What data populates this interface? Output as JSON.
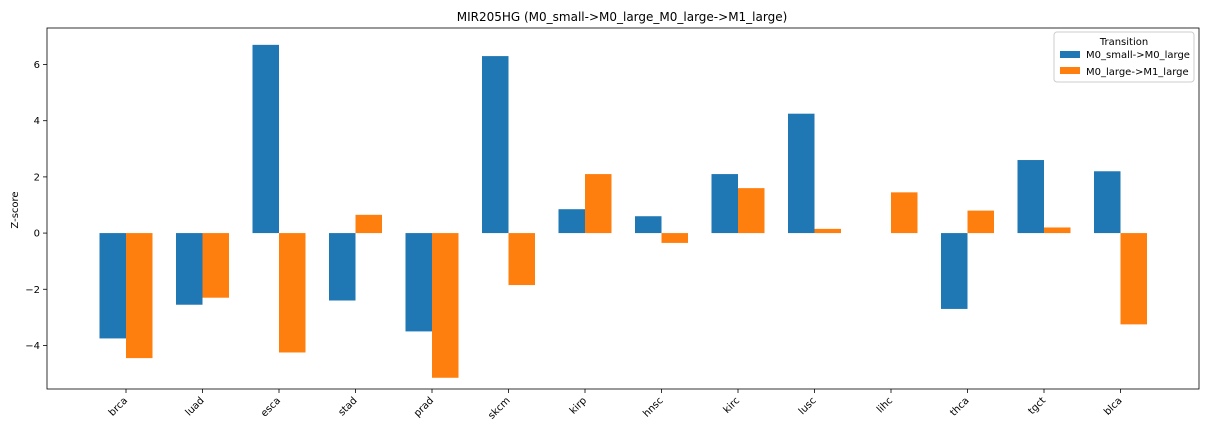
{
  "chart_data": {
    "type": "bar",
    "title": "MIR205HG (M0_small->M0_large_M0_large->M1_large)",
    "xlabel": "",
    "ylabel": "Z-score",
    "categories": [
      "brca",
      "luad",
      "esca",
      "stad",
      "prad",
      "skcm",
      "kirp",
      "hnsc",
      "kirc",
      "lusc",
      "lihc",
      "thca",
      "tgct",
      "blca"
    ],
    "series": [
      {
        "name": "M0_small->M0_large",
        "color": "#1f77b4",
        "values": [
          -3.75,
          -2.55,
          6.7,
          -2.4,
          -3.5,
          6.3,
          0.85,
          0.6,
          2.1,
          4.25,
          null,
          -2.7,
          2.6,
          2.2
        ]
      },
      {
        "name": "M0_large->M1_large",
        "color": "#ff7f0e",
        "values": [
          -4.45,
          -2.3,
          -4.25,
          0.65,
          -5.15,
          -1.85,
          2.1,
          -0.35,
          1.6,
          0.15,
          1.45,
          0.8,
          0.2,
          -3.25
        ]
      }
    ],
    "ylim": [
      -5.55,
      7.3
    ],
    "yticks": [
      -4,
      -2,
      0,
      2,
      4,
      6
    ],
    "legend": {
      "title": "Transition",
      "position": "top-right"
    },
    "grid": false
  }
}
